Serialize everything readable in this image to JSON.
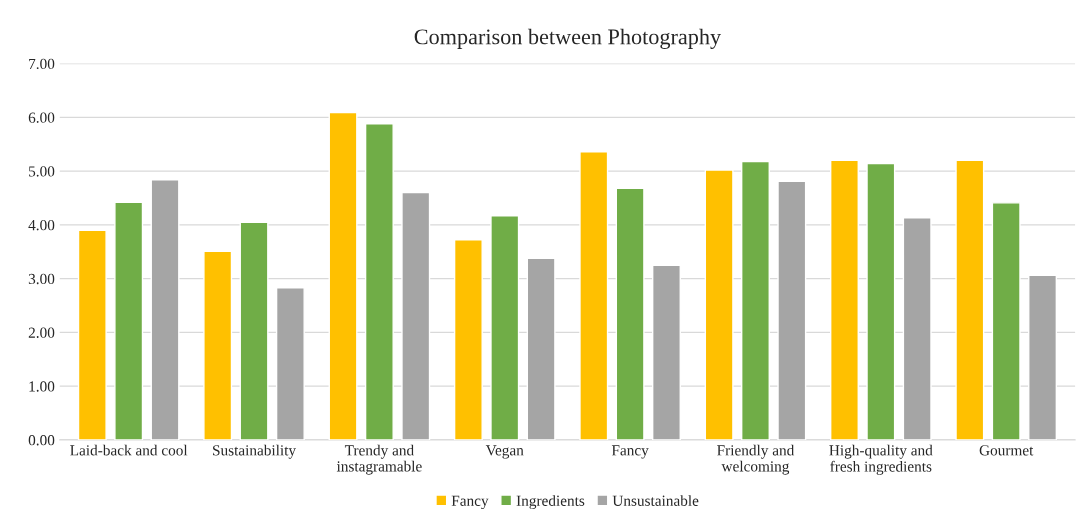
{
  "chart_data": {
    "type": "bar",
    "title": "Comparison between Photography",
    "categories": [
      "Laid-back and cool",
      "Sustainability",
      "Trendy and\ninstagramable",
      "Vegan",
      "Fancy",
      "Friendly and\nwelcoming",
      "High-quality and\nfresh ingredients",
      "Gourmet"
    ],
    "series": [
      {
        "name": "Fancy",
        "color": "#ffc000",
        "values": [
          3.9,
          3.51,
          6.09,
          3.72,
          5.36,
          5.02,
          5.2,
          5.2
        ]
      },
      {
        "name": "Ingredients",
        "color": "#70ad47",
        "values": [
          4.42,
          4.05,
          5.88,
          4.17,
          4.68,
          5.18,
          5.14,
          4.41
        ]
      },
      {
        "name": "Unsustainable",
        "color": "#a5a5a5",
        "values": [
          4.84,
          2.83,
          4.6,
          3.38,
          3.25,
          4.81,
          4.13,
          3.06
        ]
      }
    ],
    "ylim": [
      0,
      7
    ],
    "yticks": [
      {
        "value": 0,
        "label": "0.00"
      },
      {
        "value": 1,
        "label": "1.00"
      },
      {
        "value": 2,
        "label": "2.00"
      },
      {
        "value": 3,
        "label": "3.00"
      },
      {
        "value": 4,
        "label": "4.00"
      },
      {
        "value": 5,
        "label": "5.00"
      },
      {
        "value": 6,
        "label": "6.00"
      },
      {
        "value": 7,
        "label": "7.00"
      }
    ],
    "grid": "y",
    "legend": "bottom"
  }
}
